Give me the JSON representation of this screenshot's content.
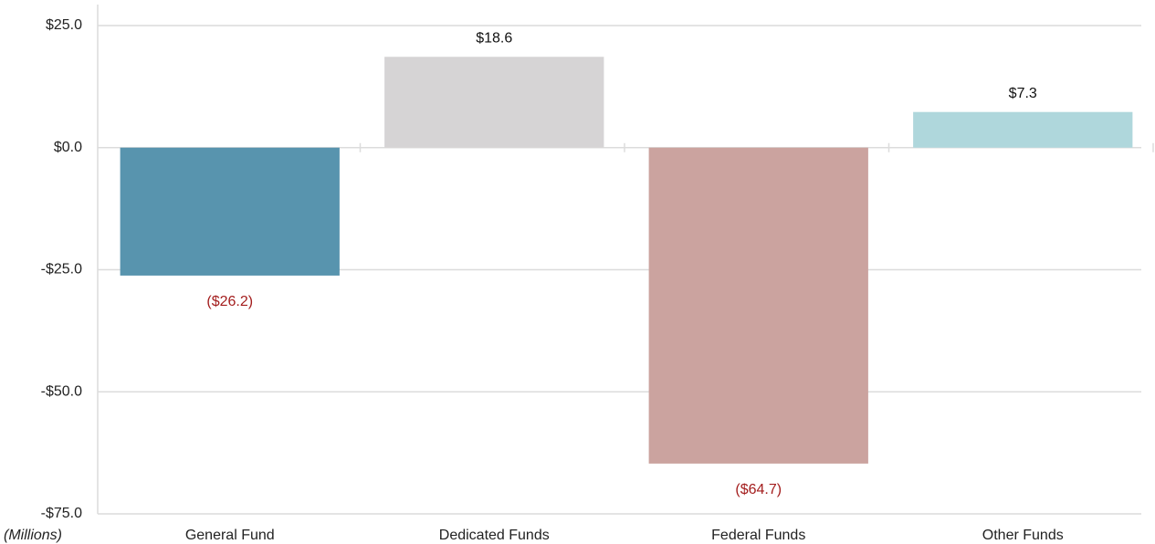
{
  "chart_data": {
    "type": "bar",
    "y_label": "(Millions)",
    "categories": [
      "General Fund",
      "Dedicated Funds",
      "Federal Funds",
      "Other Funds"
    ],
    "values": [
      -26.2,
      18.6,
      -64.7,
      7.3
    ],
    "value_labels": [
      "($26.2)",
      "$18.6",
      "($64.7)",
      "$7.3"
    ],
    "colors": [
      "#5894ae",
      "#d6d4d5",
      "#cba39f",
      "#afd7dc"
    ],
    "ylim": [
      -75,
      29.3
    ],
    "yticks": [
      {
        "value": 25,
        "label": "$25.0"
      },
      {
        "value": 0,
        "label": "$0.0"
      },
      {
        "value": -25,
        "label": "-$25.0"
      },
      {
        "value": -50,
        "label": "-$50.0"
      },
      {
        "value": -75,
        "label": "-$75.0"
      }
    ],
    "grid": true
  }
}
